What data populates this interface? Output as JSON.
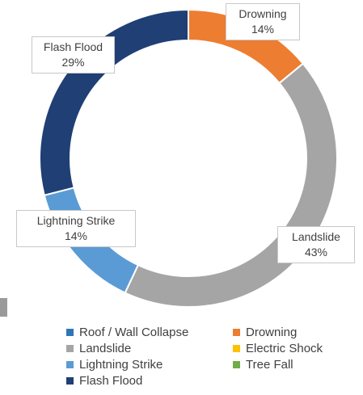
{
  "chart_data": {
    "type": "pie",
    "subtype": "doughnut",
    "title": "",
    "categories": [
      "Roof / Wall Collapse",
      "Drowning",
      "Landslide",
      "Electric Shock",
      "Lightning Strike",
      "Tree Fall",
      "Flash Flood"
    ],
    "values": [
      0,
      14,
      43,
      0,
      14,
      0,
      29
    ],
    "data_labels": [
      {
        "category": "Drowning",
        "name": "Drowning",
        "value": "14%"
      },
      {
        "category": "Landslide",
        "name": "Landslide",
        "value": "43%"
      },
      {
        "category": "Lightning Strike",
        "name": "Lightning Strike",
        "value": "14%"
      },
      {
        "category": "Flash Flood",
        "name": "Flash Flood",
        "value": "29%"
      }
    ],
    "colors": {
      "Roof / Wall Collapse": "#2e75b6",
      "Drowning": "#ed7d31",
      "Landslide": "#a5a5a5",
      "Electric Shock": "#ffc000",
      "Lightning Strike": "#5b9bd5",
      "Tree Fall": "#70ad47",
      "Flash Flood": "#1f3f75"
    },
    "legend": {
      "position": "bottom",
      "entries": [
        "Roof / Wall Collapse",
        "Drowning",
        "Landslide",
        "Electric Shock",
        "Lightning Strike",
        "Tree Fall",
        "Flash Flood"
      ]
    }
  }
}
